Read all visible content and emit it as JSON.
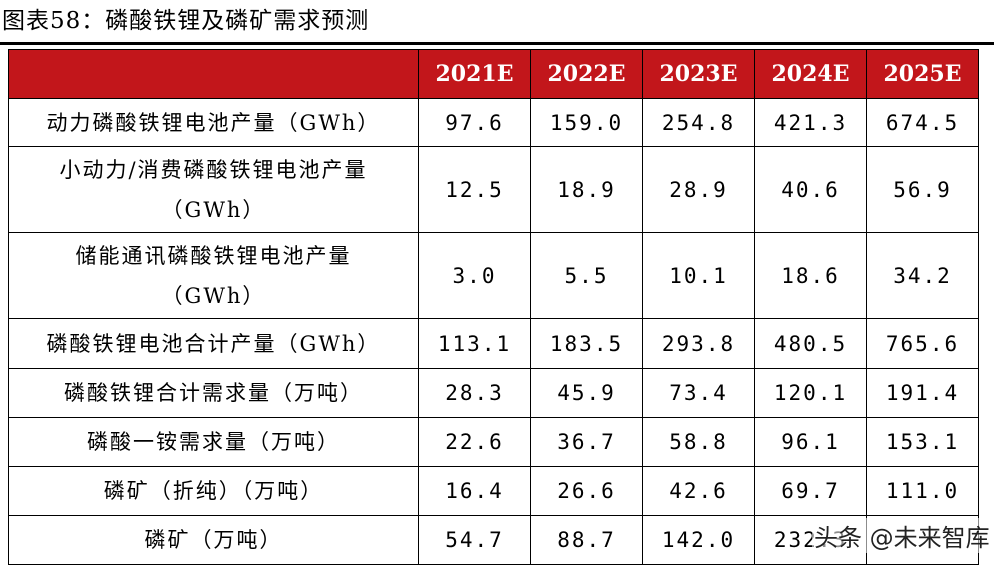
{
  "title": "图表58：磷酸铁锂及磷矿需求预测",
  "table": {
    "headers": [
      "",
      "2021E",
      "2022E",
      "2023E",
      "2024E",
      "2025E"
    ],
    "rows": [
      {
        "label": "动力磷酸铁锂电池产量（GWh）",
        "values": [
          "97.6",
          "159.0",
          "254.8",
          "421.3",
          "674.5"
        ]
      },
      {
        "label": "小动力/消费磷酸铁锂电池产量（GWh）",
        "values": [
          "12.5",
          "18.9",
          "28.9",
          "40.6",
          "56.9"
        ]
      },
      {
        "label": "储能通讯磷酸铁锂电池产量（GWh）",
        "values": [
          "3.0",
          "5.5",
          "10.1",
          "18.6",
          "34.2"
        ]
      },
      {
        "label": "磷酸铁锂电池合计产量（GWh）",
        "values": [
          "113.1",
          "183.5",
          "293.8",
          "480.5",
          "765.6"
        ]
      },
      {
        "label": "磷酸铁锂合计需求量（万吨）",
        "values": [
          "28.3",
          "45.9",
          "73.4",
          "120.1",
          "191.4"
        ]
      },
      {
        "label": "磷酸一铵需求量（万吨）",
        "values": [
          "22.6",
          "36.7",
          "58.8",
          "96.1",
          "153.1"
        ]
      },
      {
        "label": "磷矿（折纯）（万吨）",
        "values": [
          "16.4",
          "26.6",
          "42.6",
          "69.7",
          "111.0"
        ]
      },
      {
        "label": "磷矿（万吨）",
        "values": [
          "54.7",
          "88.7",
          "142.0",
          "232.3",
          ""
        ]
      }
    ]
  },
  "watermark": "头条 @未来智库"
}
